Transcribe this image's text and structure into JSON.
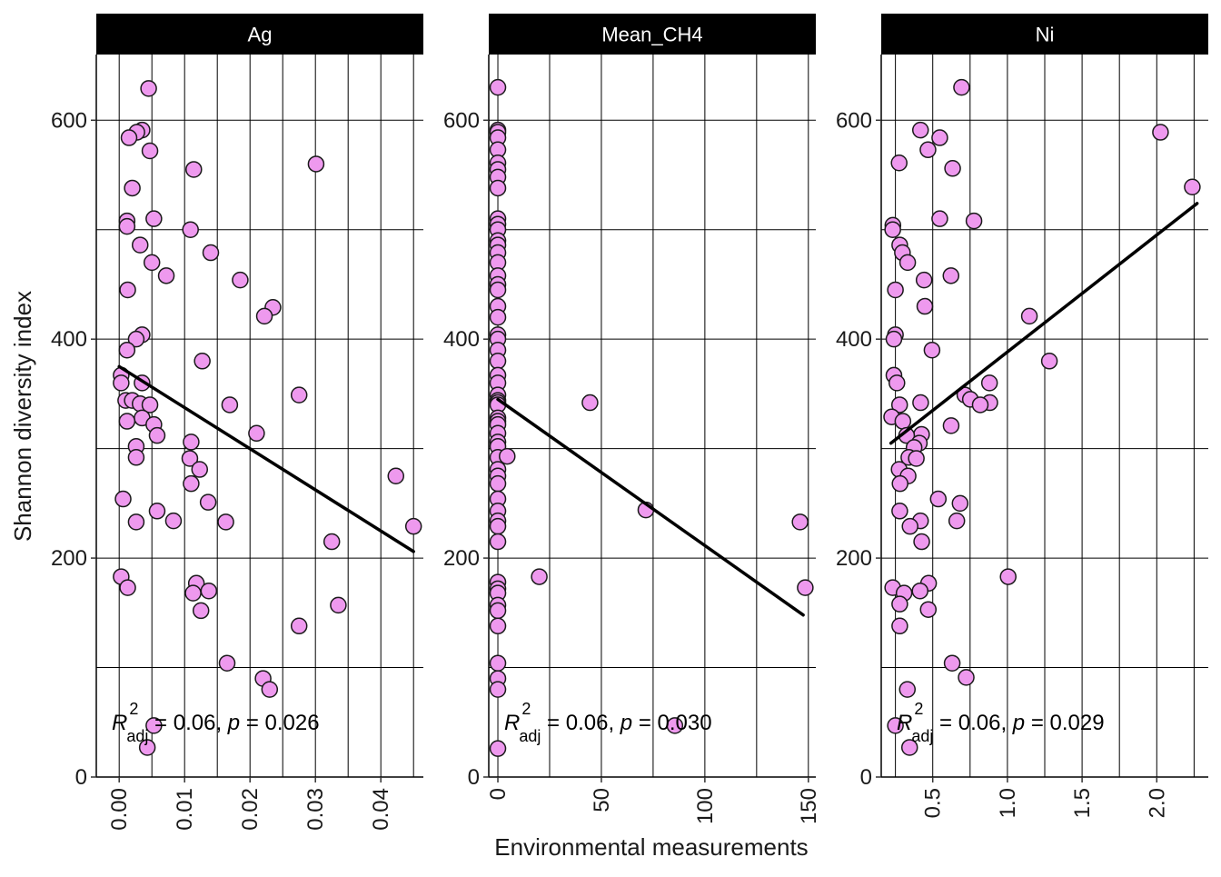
{
  "chart_data": {
    "type": "scatter",
    "layout": "facet",
    "xlabel": "Environmental measurements",
    "ylabel": "Shannon diversity index",
    "ylim": [
      0,
      660
    ],
    "yticks": [
      0,
      200,
      400,
      600
    ],
    "grid": true,
    "colors": {
      "point_fill": "#EE99EE",
      "point_stroke": "#1a1a1a",
      "fit_line": "#000000",
      "strip": "#000000",
      "strip_text": "#ffffff",
      "grid": "#000000"
    },
    "facets": [
      {
        "name": "Ag",
        "xlim": [
          -0.0035,
          0.0465
        ],
        "xticks": [
          0.0,
          0.01,
          0.02,
          0.03,
          0.04
        ],
        "xtick_labels": [
          "0.00",
          "0.01",
          "0.02",
          "0.03",
          "0.04"
        ],
        "fit": {
          "x": [
            0.0,
            0.045
          ],
          "y": [
            375,
            206
          ]
        },
        "annotation": {
          "r2_label": "R",
          "r2_sup": "2",
          "r2_sub": "adj",
          "text": " = 0.06, ",
          "p_label": "p",
          "p_text": " = 0.026"
        },
        "points": [
          [
            0.0045,
            629
          ],
          [
            0.0035,
            591
          ],
          [
            0.0027,
            589
          ],
          [
            0.0015,
            584
          ],
          [
            0.0047,
            572
          ],
          [
            0.0114,
            555
          ],
          [
            0.0301,
            560
          ],
          [
            0.002,
            538
          ],
          [
            0.0053,
            510
          ],
          [
            0.0012,
            508
          ],
          [
            0.0012,
            503
          ],
          [
            0.0109,
            500
          ],
          [
            0.0032,
            486
          ],
          [
            0.014,
            479
          ],
          [
            0.005,
            470
          ],
          [
            0.0072,
            458
          ],
          [
            0.0185,
            454
          ],
          [
            0.0013,
            445
          ],
          [
            0.0235,
            429
          ],
          [
            0.0222,
            421
          ],
          [
            0.0035,
            404
          ],
          [
            0.0026,
            400
          ],
          [
            0.0012,
            390
          ],
          [
            0.0127,
            380
          ],
          [
            0.0003,
            367
          ],
          [
            0.0003,
            360
          ],
          [
            0.0035,
            360
          ],
          [
            0.0275,
            349
          ],
          [
            0.001,
            344
          ],
          [
            0.002,
            344
          ],
          [
            0.0032,
            341
          ],
          [
            0.0047,
            340
          ],
          [
            0.0169,
            340
          ],
          [
            0.0035,
            328
          ],
          [
            0.0012,
            325
          ],
          [
            0.0053,
            322
          ],
          [
            0.021,
            314
          ],
          [
            0.0058,
            312
          ],
          [
            0.011,
            306
          ],
          [
            0.0026,
            302
          ],
          [
            0.0026,
            292
          ],
          [
            0.0108,
            291
          ],
          [
            0.0123,
            281
          ],
          [
            0.0423,
            275
          ],
          [
            0.011,
            268
          ],
          [
            0.0006,
            254
          ],
          [
            0.0136,
            251
          ],
          [
            0.0058,
            243
          ],
          [
            0.0026,
            233
          ],
          [
            0.0083,
            234
          ],
          [
            0.0163,
            233
          ],
          [
            0.045,
            229
          ],
          [
            0.0325,
            215
          ],
          [
            0.0003,
            183
          ],
          [
            0.0118,
            177
          ],
          [
            0.0013,
            173
          ],
          [
            0.0137,
            170
          ],
          [
            0.0113,
            168
          ],
          [
            0.0335,
            157
          ],
          [
            0.0125,
            152
          ],
          [
            0.0275,
            138
          ],
          [
            0.0165,
            104
          ],
          [
            0.022,
            90
          ],
          [
            0.023,
            80
          ],
          [
            0.0053,
            47
          ],
          [
            0.0043,
            27
          ]
        ]
      },
      {
        "name": "Mean_CH4",
        "xlim": [
          -4.4,
          153.6
        ],
        "xticks": [
          0,
          50,
          100,
          150
        ],
        "xtick_labels": [
          "0",
          "50",
          "100",
          "150"
        ],
        "fit": {
          "x": [
            0.0,
            147.5
          ],
          "y": [
            345,
            148
          ]
        },
        "annotation": {
          "r2_label": "R",
          "r2_sup": "2",
          "r2_sub": "adj",
          "text": " = 0.06, ",
          "p_label": "p",
          "p_text": " = 0.030"
        },
        "points": [
          [
            0,
            630
          ],
          [
            0,
            591
          ],
          [
            0,
            589
          ],
          [
            0,
            584
          ],
          [
            0,
            573
          ],
          [
            0,
            561
          ],
          [
            0,
            555
          ],
          [
            0,
            548
          ],
          [
            0,
            538
          ],
          [
            0,
            510
          ],
          [
            0,
            505
          ],
          [
            0,
            500
          ],
          [
            0,
            490
          ],
          [
            0,
            486
          ],
          [
            0,
            479
          ],
          [
            0,
            470
          ],
          [
            0,
            458
          ],
          [
            0,
            450
          ],
          [
            0,
            445
          ],
          [
            0,
            430
          ],
          [
            0,
            420
          ],
          [
            0,
            404
          ],
          [
            0,
            400
          ],
          [
            0,
            390
          ],
          [
            0,
            380
          ],
          [
            0,
            367
          ],
          [
            0,
            360
          ],
          [
            0,
            349
          ],
          [
            0,
            344
          ],
          [
            0,
            342
          ],
          [
            0,
            340
          ],
          [
            0,
            328
          ],
          [
            0,
            325
          ],
          [
            0,
            322
          ],
          [
            0,
            314
          ],
          [
            0,
            306
          ],
          [
            0,
            302
          ],
          [
            0,
            292
          ],
          [
            0,
            281
          ],
          [
            0,
            275
          ],
          [
            0,
            268
          ],
          [
            0,
            254
          ],
          [
            0,
            243
          ],
          [
            0,
            234
          ],
          [
            0,
            229
          ],
          [
            0,
            215
          ],
          [
            0,
            178
          ],
          [
            0,
            172
          ],
          [
            0,
            168
          ],
          [
            0,
            157
          ],
          [
            0,
            152
          ],
          [
            0,
            138
          ],
          [
            0,
            104
          ],
          [
            0,
            90
          ],
          [
            0,
            80
          ],
          [
            0,
            26
          ],
          [
            4.5,
            293
          ],
          [
            20,
            183
          ],
          [
            44.5,
            342
          ],
          [
            71.5,
            244
          ],
          [
            85.5,
            47
          ],
          [
            146,
            233
          ],
          [
            148.5,
            173
          ]
        ]
      },
      {
        "name": "Ni",
        "xlim": [
          0.155,
          2.345
        ],
        "xticks": [
          0.5,
          1.0,
          1.5,
          2.0
        ],
        "xtick_labels": [
          "0.5",
          "1.0",
          "1.5",
          "2.0"
        ],
        "fit": {
          "x": [
            0.22,
            2.27
          ],
          "y": [
            305,
            524
          ]
        },
        "annotation": {
          "r2_label": "R",
          "r2_sup": "2",
          "r2_sub": "adj",
          "text": " = 0.06, ",
          "p_label": "p",
          "p_text": " = 0.029"
        },
        "points": [
          [
            0.693,
            630
          ],
          [
            0.418,
            591
          ],
          [
            2.025,
            589
          ],
          [
            0.547,
            584
          ],
          [
            0.468,
            573
          ],
          [
            0.275,
            561
          ],
          [
            0.633,
            556
          ],
          [
            2.238,
            539
          ],
          [
            0.547,
            510
          ],
          [
            0.776,
            508
          ],
          [
            0.233,
            504
          ],
          [
            0.232,
            500
          ],
          [
            0.279,
            486
          ],
          [
            0.297,
            479
          ],
          [
            0.332,
            470
          ],
          [
            0.442,
            454
          ],
          [
            0.622,
            458
          ],
          [
            0.25,
            445
          ],
          [
            0.447,
            430
          ],
          [
            1.147,
            421
          ],
          [
            0.25,
            404
          ],
          [
            0.24,
            400
          ],
          [
            0.495,
            390
          ],
          [
            1.281,
            380
          ],
          [
            0.24,
            367
          ],
          [
            0.26,
            360
          ],
          [
            0.88,
            360
          ],
          [
            0.715,
            349
          ],
          [
            0.752,
            345
          ],
          [
            0.419,
            342
          ],
          [
            0.882,
            342
          ],
          [
            0.278,
            340
          ],
          [
            0.818,
            340
          ],
          [
            0.225,
            329
          ],
          [
            0.3,
            325
          ],
          [
            0.623,
            321
          ],
          [
            0.425,
            313
          ],
          [
            0.325,
            312
          ],
          [
            0.41,
            305
          ],
          [
            0.375,
            301
          ],
          [
            0.34,
            292
          ],
          [
            0.39,
            291
          ],
          [
            0.275,
            281
          ],
          [
            0.335,
            275
          ],
          [
            0.281,
            268
          ],
          [
            0.537,
            254
          ],
          [
            0.683,
            250
          ],
          [
            0.279,
            243
          ],
          [
            0.418,
            234
          ],
          [
            0.348,
            229
          ],
          [
            0.661,
            234
          ],
          [
            0.426,
            215
          ],
          [
            0.232,
            173
          ],
          [
            0.472,
            177
          ],
          [
            0.415,
            170
          ],
          [
            0.308,
            168
          ],
          [
            1.005,
            183
          ],
          [
            0.279,
            158
          ],
          [
            0.47,
            153
          ],
          [
            0.279,
            138
          ],
          [
            0.63,
            104
          ],
          [
            0.724,
            91
          ],
          [
            0.33,
            80
          ],
          [
            0.25,
            47
          ],
          [
            0.345,
            27
          ]
        ]
      }
    ]
  }
}
